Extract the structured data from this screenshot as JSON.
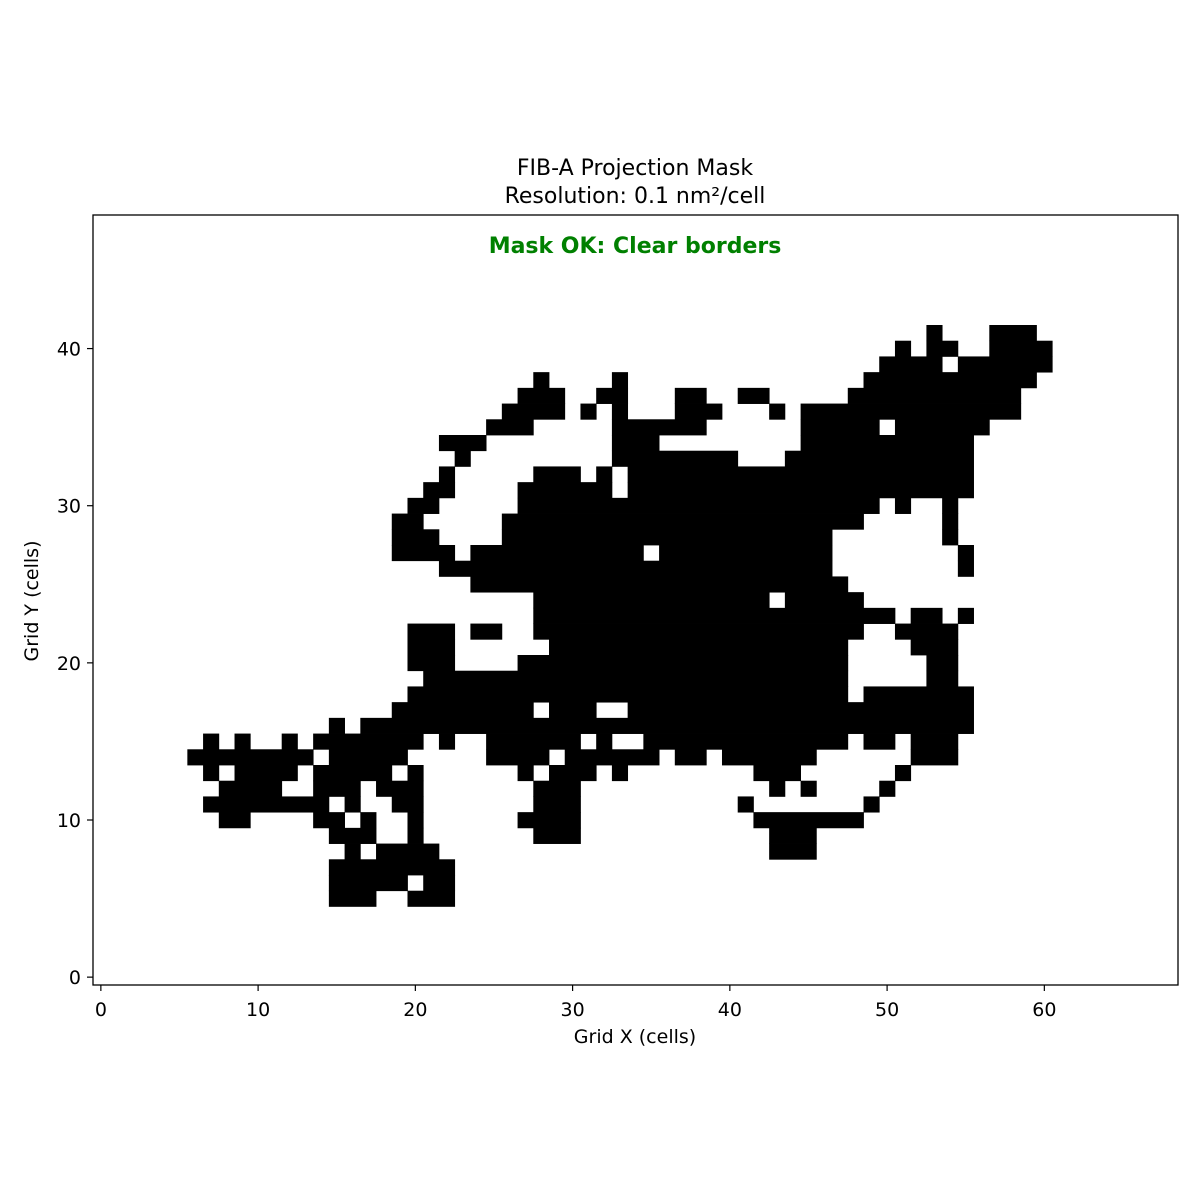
{
  "chart_data": {
    "type": "heatmap",
    "title": "FIB-A Projection Mask",
    "subtitle": "Resolution: 0.1 nm²/cell",
    "annotation": "Mask OK: Clear borders",
    "annotation_color": "#008000",
    "xlabel": "Grid X (cells)",
    "ylabel": "Grid Y (cells)",
    "xlim": [
      -0.5,
      68.5
    ],
    "ylim": [
      -0.5,
      48.5
    ],
    "x_ticks": [
      0,
      10,
      20,
      30,
      40,
      50,
      60
    ],
    "y_ticks": [
      0,
      10,
      20,
      30,
      40
    ],
    "cell_color": "#000000",
    "background_color": "#ffffff",
    "grid": false,
    "mask_rows_y_to_x_ranges": {
      "41": [
        [
          53,
          53
        ],
        [
          57,
          59
        ]
      ],
      "40": [
        [
          51,
          51
        ],
        [
          53,
          54
        ],
        [
          57,
          60
        ]
      ],
      "39": [
        [
          50,
          53
        ],
        [
          55,
          60
        ]
      ],
      "38": [
        [
          28,
          28
        ],
        [
          33,
          33
        ],
        [
          49,
          59
        ]
      ],
      "37": [
        [
          27,
          29
        ],
        [
          32,
          33
        ],
        [
          37,
          38
        ],
        [
          41,
          42
        ],
        [
          48,
          58
        ]
      ],
      "36": [
        [
          26,
          29
        ],
        [
          31,
          31
        ],
        [
          33,
          33
        ],
        [
          37,
          39
        ],
        [
          43,
          43
        ],
        [
          45,
          58
        ]
      ],
      "35": [
        [
          25,
          27
        ],
        [
          33,
          38
        ],
        [
          45,
          49
        ],
        [
          51,
          56
        ]
      ],
      "34": [
        [
          22,
          24
        ],
        [
          33,
          35
        ],
        [
          45,
          55
        ]
      ],
      "33": [
        [
          23,
          23
        ],
        [
          33,
          40
        ],
        [
          44,
          55
        ]
      ],
      "32": [
        [
          22,
          22
        ],
        [
          28,
          30
        ],
        [
          32,
          32
        ],
        [
          34,
          55
        ]
      ],
      "31": [
        [
          21,
          22
        ],
        [
          27,
          32
        ],
        [
          34,
          55
        ]
      ],
      "30": [
        [
          20,
          21
        ],
        [
          27,
          49
        ],
        [
          51,
          51
        ],
        [
          54,
          54
        ]
      ],
      "29": [
        [
          19,
          20
        ],
        [
          26,
          48
        ],
        [
          54,
          54
        ]
      ],
      "28": [
        [
          19,
          21
        ],
        [
          26,
          46
        ],
        [
          54,
          54
        ]
      ],
      "27": [
        [
          19,
          22
        ],
        [
          24,
          34
        ],
        [
          36,
          46
        ],
        [
          55,
          55
        ]
      ],
      "26": [
        [
          22,
          46
        ],
        [
          55,
          55
        ]
      ],
      "25": [
        [
          24,
          47
        ]
      ],
      "24": [
        [
          28,
          42
        ],
        [
          44,
          48
        ]
      ],
      "23": [
        [
          28,
          50
        ],
        [
          52,
          53
        ],
        [
          55,
          55
        ]
      ],
      "22": [
        [
          20,
          22
        ],
        [
          24,
          25
        ],
        [
          28,
          48
        ],
        [
          51,
          54
        ]
      ],
      "21": [
        [
          20,
          22
        ],
        [
          29,
          47
        ],
        [
          52,
          54
        ]
      ],
      "20": [
        [
          20,
          22
        ],
        [
          27,
          47
        ],
        [
          53,
          54
        ]
      ],
      "19": [
        [
          21,
          47
        ],
        [
          53,
          54
        ]
      ],
      "18": [
        [
          20,
          47
        ],
        [
          49,
          55
        ]
      ],
      "17": [
        [
          19,
          27
        ],
        [
          29,
          31
        ],
        [
          34,
          48
        ],
        [
          49,
          55
        ]
      ],
      "16": [
        [
          15,
          15
        ],
        [
          17,
          55
        ]
      ],
      "15": [
        [
          7,
          7
        ],
        [
          9,
          9
        ],
        [
          12,
          12
        ],
        [
          14,
          20
        ],
        [
          22,
          22
        ],
        [
          25,
          30
        ],
        [
          32,
          32
        ],
        [
          35,
          47
        ],
        [
          49,
          50
        ],
        [
          52,
          54
        ]
      ],
      "14": [
        [
          6,
          13
        ],
        [
          15,
          19
        ],
        [
          25,
          27
        ],
        [
          28,
          28
        ],
        [
          30,
          35
        ],
        [
          37,
          38
        ],
        [
          40,
          45
        ],
        [
          52,
          54
        ]
      ],
      "13": [
        [
          7,
          7
        ],
        [
          9,
          12
        ],
        [
          14,
          18
        ],
        [
          20,
          20
        ],
        [
          27,
          27
        ],
        [
          29,
          31
        ],
        [
          33,
          33
        ],
        [
          42,
          44
        ],
        [
          51,
          51
        ]
      ],
      "12": [
        [
          8,
          11
        ],
        [
          14,
          16
        ],
        [
          18,
          20
        ],
        [
          28,
          30
        ],
        [
          43,
          43
        ],
        [
          45,
          45
        ],
        [
          50,
          50
        ]
      ],
      "11": [
        [
          7,
          14
        ],
        [
          16,
          16
        ],
        [
          19,
          20
        ],
        [
          28,
          30
        ],
        [
          41,
          41
        ],
        [
          49,
          49
        ]
      ],
      "10": [
        [
          8,
          9
        ],
        [
          14,
          15
        ],
        [
          17,
          17
        ],
        [
          20,
          20
        ],
        [
          27,
          30
        ],
        [
          42,
          48
        ]
      ],
      "9": [
        [
          15,
          17
        ],
        [
          20,
          20
        ],
        [
          28,
          30
        ],
        [
          43,
          45
        ]
      ],
      "8": [
        [
          16,
          16
        ],
        [
          18,
          21
        ],
        [
          43,
          45
        ]
      ],
      "7": [
        [
          15,
          22
        ]
      ],
      "6": [
        [
          15,
          19
        ],
        [
          21,
          22
        ]
      ],
      "5": [
        [
          15,
          17
        ],
        [
          20,
          22
        ]
      ]
    }
  }
}
